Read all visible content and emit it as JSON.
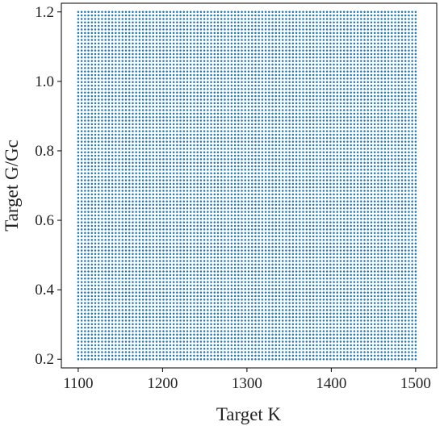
{
  "chart_data": {
    "type": "scatter",
    "title": "",
    "xlabel": "Target K",
    "ylabel": "Target G/Gc",
    "xlim": [
      1080,
      1525
    ],
    "ylim": [
      0.175,
      1.225
    ],
    "xticks": [
      1100,
      1200,
      1300,
      1400,
      1500
    ],
    "yticks": [
      0.2,
      0.4,
      0.6,
      0.8,
      1.0,
      1.2
    ],
    "xtick_labels": [
      "1100",
      "1200",
      "1300",
      "1400",
      "1500"
    ],
    "ytick_labels": [
      "0.2",
      "0.4",
      "0.6",
      "0.8",
      "1.0",
      "1.2"
    ],
    "grid": false,
    "legend": "none",
    "series": [
      {
        "grid_points": {
          "x_start": 1100,
          "x_end": 1500,
          "x_count": 100,
          "y_start": 0.2,
          "y_end": 1.2,
          "y_count": 100
        },
        "color": "#1f77b4"
      }
    ]
  }
}
